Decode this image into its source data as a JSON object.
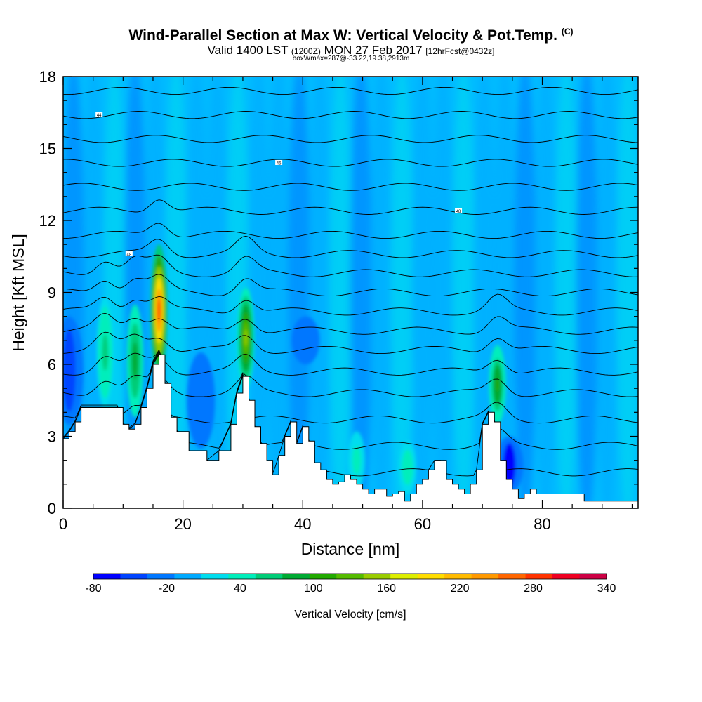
{
  "header": {
    "title": "Wind-Parallel Section at Max W: Vertical Velocity & Pot.Temp.",
    "title_tag": "(C)",
    "valid_prefix": "Valid 1400 LST",
    "valid_utc": "(1200Z)",
    "valid_date": "MON 27 Feb 2017",
    "forecast": "[12hrFcst@0432z]",
    "box_info": "boxWmax=287@-33.22,19.38,2913m"
  },
  "chart_data": {
    "type": "heatmap",
    "xlabel": "Distance [nm]",
    "ylabel": "Height [Kft MSL]",
    "xlim": [
      0,
      96
    ],
    "ylim": [
      0,
      18
    ],
    "xticks": [
      "0",
      "20",
      "40",
      "60",
      "80"
    ],
    "yticks": [
      "0",
      "3",
      "6",
      "9",
      "12",
      "15",
      "18"
    ],
    "colorbar": {
      "label": "Vertical Velocity [cm/s]",
      "tick_labels": [
        "-80",
        "-20",
        "40",
        "100",
        "160",
        "220",
        "280",
        "340"
      ],
      "colors": [
        "#0000ff",
        "#0044ff",
        "#0077ff",
        "#00aaff",
        "#00ddee",
        "#00eebb",
        "#00cc77",
        "#00aa33",
        "#22aa00",
        "#55bb00",
        "#99cc00",
        "#ddee00",
        "#ffdd00",
        "#ffbb00",
        "#ff9900",
        "#ff6600",
        "#ff3300",
        "#ee0022",
        "#cc0044"
      ]
    },
    "background_value_range": [
      -20,
      20
    ],
    "terrain_profile": {
      "x": [
        0,
        1,
        2,
        3,
        5,
        9,
        10,
        11,
        12,
        13,
        14,
        15,
        16,
        17,
        18,
        19,
        21,
        24,
        26,
        28,
        29,
        30,
        31,
        32,
        33,
        34,
        35,
        36,
        37,
        38,
        39,
        40,
        41,
        42,
        43,
        44,
        45,
        46,
        47,
        48,
        49,
        50,
        51,
        52,
        53,
        54,
        55,
        56,
        57,
        58,
        59,
        60,
        61,
        62,
        63,
        64,
        65,
        66,
        67,
        68,
        69,
        70,
        71,
        72,
        73,
        74,
        75,
        76,
        77,
        78,
        79,
        80,
        81,
        82,
        83,
        84,
        86,
        87,
        88,
        90,
        92,
        93,
        94,
        95,
        96
      ],
      "height_kft": [
        2.9,
        3.2,
        3.6,
        4.2,
        4.2,
        4.2,
        3.5,
        3.3,
        3.5,
        4.2,
        5.0,
        6.0,
        6.4,
        5.2,
        3.8,
        3.2,
        2.4,
        2.0,
        2.4,
        3.5,
        4.8,
        5.5,
        4.5,
        3.4,
        2.7,
        2.0,
        1.4,
        2.2,
        3.0,
        3.6,
        2.7,
        3.4,
        2.8,
        1.9,
        1.6,
        1.2,
        1.0,
        1.1,
        1.4,
        1.2,
        1.0,
        0.8,
        0.6,
        0.8,
        0.8,
        0.5,
        0.6,
        0.7,
        0.3,
        0.6,
        1.0,
        1.2,
        1.6,
        2.0,
        2.0,
        1.2,
        1.0,
        0.8,
        0.6,
        1.0,
        1.6,
        3.5,
        4.0,
        3.6,
        2.0,
        1.2,
        0.8,
        0.4,
        0.6,
        0.8,
        0.6,
        0.6,
        0.6,
        0.6,
        0.6,
        0.6,
        0.6,
        0.3,
        0.3,
        0.3,
        0.3,
        0.3,
        0.3,
        0.3,
        0.3
      ]
    },
    "updraft_cores": [
      {
        "x": 16,
        "bottom_kft": 5.5,
        "top_kft": 11.0,
        "peak_cm_s": 287
      },
      {
        "x": 30.5,
        "bottom_kft": 5.0,
        "top_kft": 9.2,
        "peak_cm_s": 150
      },
      {
        "x": 12,
        "bottom_kft": 3.8,
        "top_kft": 8.5,
        "peak_cm_s": 90
      },
      {
        "x": 7,
        "bottom_kft": 4.2,
        "top_kft": 8.8,
        "peak_cm_s": 60
      },
      {
        "x": 72.5,
        "bottom_kft": 3.5,
        "top_kft": 6.8,
        "peak_cm_s": 110
      },
      {
        "x": 49,
        "bottom_kft": 0.8,
        "top_kft": 3.2,
        "peak_cm_s": 40
      },
      {
        "x": 57.5,
        "bottom_kft": 0.6,
        "top_kft": 2.8,
        "peak_cm_s": 50
      }
    ],
    "downdraft_cores": [
      {
        "x": 1,
        "bottom_kft": 3.5,
        "top_kft": 8.0,
        "min_cm_s": -40
      },
      {
        "x": 23,
        "bottom_kft": 2.5,
        "top_kft": 6.5,
        "min_cm_s": -30
      },
      {
        "x": 74.5,
        "bottom_kft": 0.6,
        "top_kft": 3.0,
        "min_cm_s": -70
      },
      {
        "x": 40.5,
        "bottom_kft": 6.0,
        "top_kft": 8.0,
        "min_cm_s": -30
      }
    ],
    "isentrope_labels": [
      "44",
      "46",
      "48",
      "48"
    ],
    "isentrope_levels_kft": [
      1.5,
      2.6,
      3.7,
      4.8,
      5.7,
      6.6,
      7.4,
      8.2,
      9.0,
      9.8,
      10.6,
      11.4,
      12.4,
      13.4,
      14.4,
      15.4,
      16.4,
      17.4
    ]
  }
}
